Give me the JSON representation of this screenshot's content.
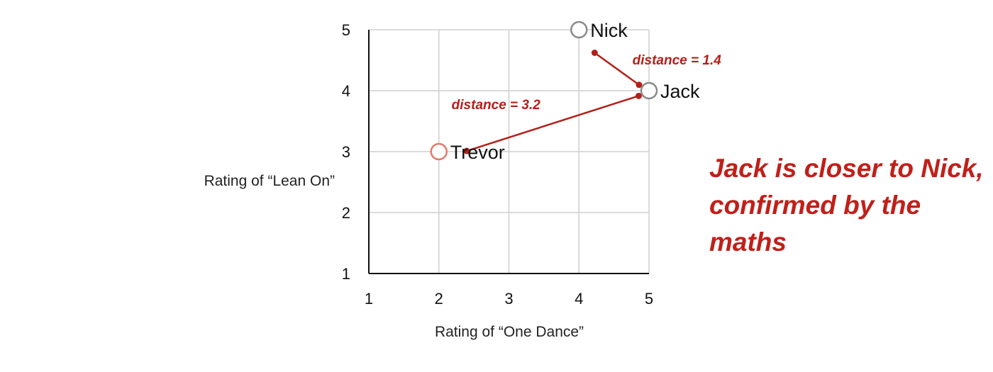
{
  "chart_data": {
    "type": "scatter",
    "xlabel": "Rating of “One Dance”",
    "ylabel": "Rating of “Lean On”",
    "xlim": [
      1,
      5
    ],
    "ylim": [
      1,
      5
    ],
    "xticks": [
      "1",
      "2",
      "3",
      "4",
      "5"
    ],
    "yticks": [
      "1",
      "2",
      "3",
      "4",
      "5"
    ],
    "grid": true,
    "points": [
      {
        "label": "Nick",
        "x": 4,
        "y": 5,
        "color": "#8a8a8a"
      },
      {
        "label": "Jack",
        "x": 5,
        "y": 4,
        "color": "#8a8a8a"
      },
      {
        "label": "Trevor",
        "x": 2,
        "y": 3,
        "color": "#e07a6a"
      }
    ],
    "annotations": [
      {
        "text": "distance = 1.4",
        "from": "Nick",
        "to": "Jack",
        "color": "#b3201a"
      },
      {
        "text": "distance = 3.2",
        "from": "Trevor",
        "to": "Jack",
        "color": "#b3201a"
      }
    ]
  },
  "conclusion": {
    "text": "Jack is closer to Nick, confirmed by the maths",
    "color": "#c0201a"
  }
}
